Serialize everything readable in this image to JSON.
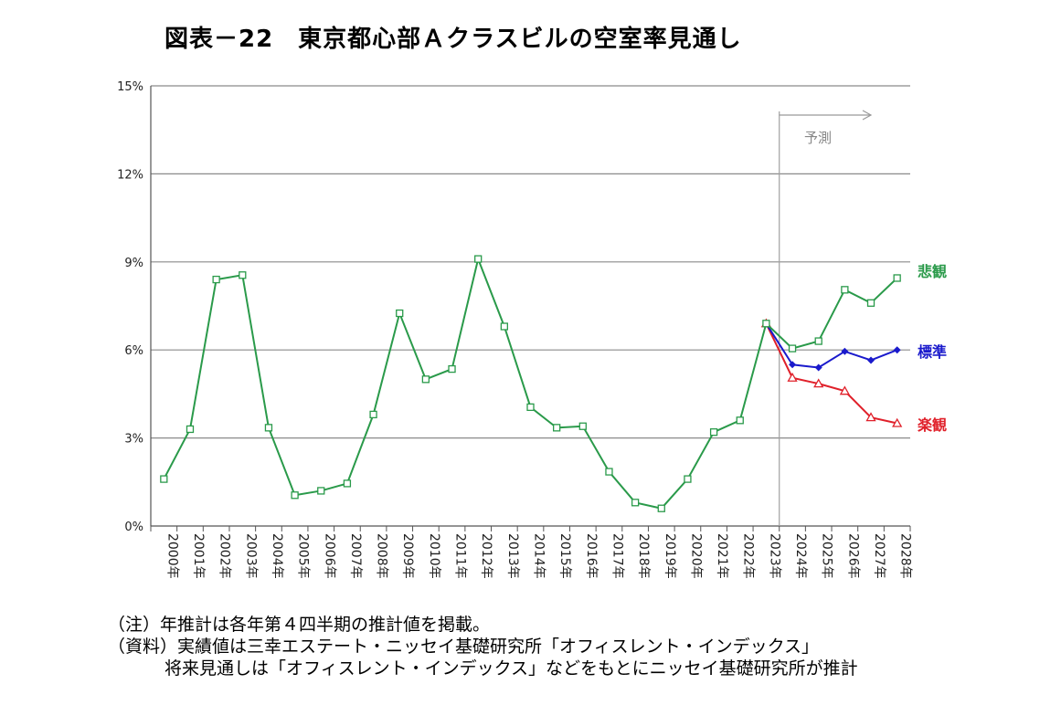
{
  "title": "図表－22　東京都心部Ａクラスビルの空室率見通し",
  "notes": [
    "（注）年推計は各年第４四半期の推計値を掲載。",
    "（資料）実績値は三幸エステート・ニッセイ基礎研究所「オフィスレント・インデックス」",
    "将来見通しは「オフィスレント・インデックス」などをもとにニッセイ基礎研究所が推計"
  ],
  "chart_data": {
    "type": "line",
    "title": "図表－22　東京都心部Ａクラスビルの空室率見通し",
    "categories": [
      "2000年",
      "2001年",
      "2002年",
      "2003年",
      "2004年",
      "2005年",
      "2006年",
      "2007年",
      "2008年",
      "2009年",
      "2010年",
      "2011年",
      "2012年",
      "2013年",
      "2014年",
      "2015年",
      "2016年",
      "2017年",
      "2018年",
      "2019年",
      "2020年",
      "2021年",
      "2022年",
      "2023年",
      "2024年",
      "2025年",
      "2026年",
      "2027年",
      "2028年"
    ],
    "y_ticks": [
      "0%",
      "3%",
      "6%",
      "9%",
      "12%",
      "15%"
    ],
    "ylim": [
      0,
      15
    ],
    "grid": true,
    "forecast_label": "予測",
    "forecast_start": "2023年",
    "series": [
      {
        "name": "悲観",
        "color": "#2a9a4a",
        "marker": "open-square",
        "values": [
          1.6,
          3.3,
          8.4,
          8.55,
          3.35,
          1.05,
          1.2,
          1.45,
          3.8,
          7.25,
          5.0,
          5.35,
          9.1,
          6.8,
          4.05,
          3.35,
          3.4,
          1.85,
          0.8,
          0.6,
          1.6,
          3.2,
          3.6,
          6.9,
          6.05,
          6.3,
          8.05,
          7.6,
          8.45
        ]
      },
      {
        "name": "標準",
        "color": "#1a1acc",
        "marker": "filled-diamond",
        "values": [
          null,
          null,
          null,
          null,
          null,
          null,
          null,
          null,
          null,
          null,
          null,
          null,
          null,
          null,
          null,
          null,
          null,
          null,
          null,
          null,
          null,
          null,
          null,
          6.9,
          5.5,
          5.4,
          5.95,
          5.65,
          6.0
        ]
      },
      {
        "name": "楽観",
        "color": "#e0202a",
        "marker": "open-triangle",
        "values": [
          null,
          null,
          null,
          null,
          null,
          null,
          null,
          null,
          null,
          null,
          null,
          null,
          null,
          null,
          null,
          null,
          null,
          null,
          null,
          null,
          null,
          null,
          null,
          6.9,
          5.05,
          4.85,
          4.6,
          3.7,
          3.5
        ]
      }
    ]
  }
}
